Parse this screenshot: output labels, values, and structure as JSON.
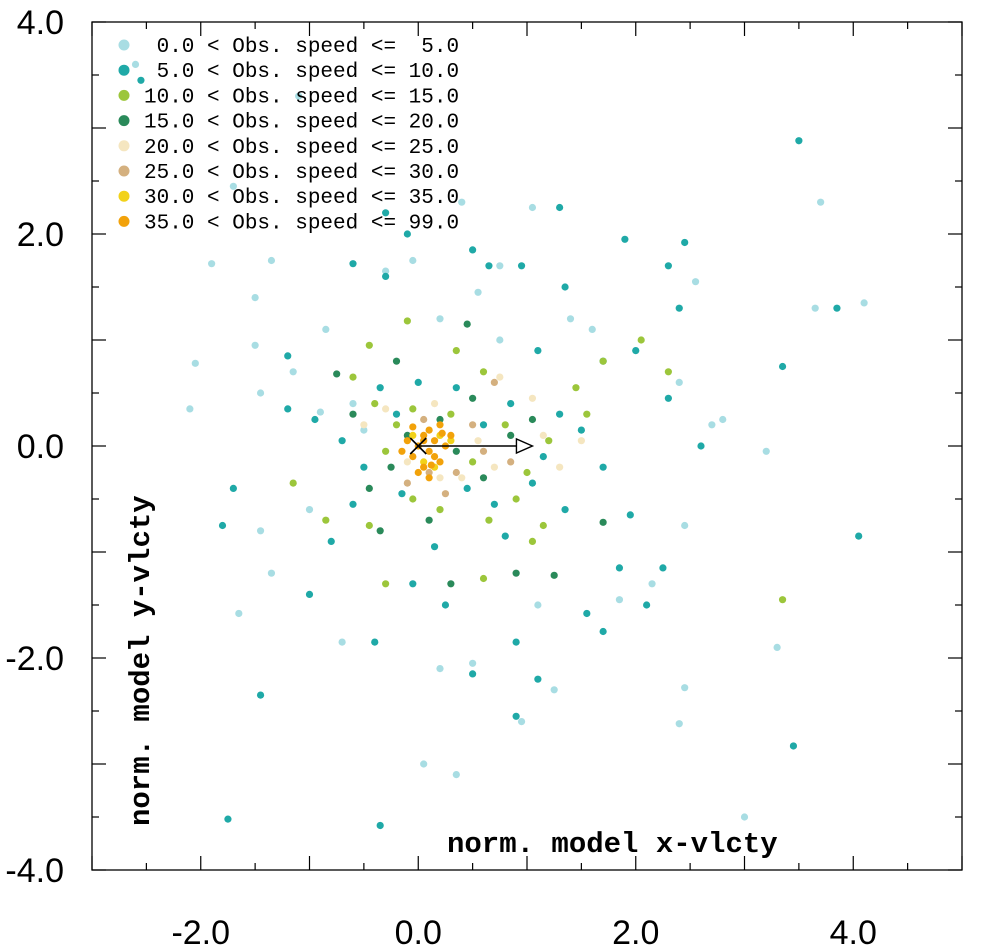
{
  "chart_data": {
    "type": "scatter",
    "xlabel": "norm. model x-vlcty",
    "ylabel": "norm. model y-vlcty",
    "xlim": [
      -3.0,
      5.0
    ],
    "ylim": [
      -4.0,
      4.0
    ],
    "x_ticks": [
      "-2.0",
      "0.0",
      "2.0",
      "4.0"
    ],
    "y_ticks": [
      "4.0",
      "2.0",
      "0.0",
      "-2.0",
      "-4.0"
    ],
    "legend_position": "top-left",
    "series": [
      {
        "name": "0.0 < Obs. speed <=  5.0",
        "color": "#a8dde3",
        "points": [
          [
            -2.6,
            3.6
          ],
          [
            -1.1,
            3.3
          ],
          [
            -1.7,
            2.45
          ],
          [
            -1.9,
            1.72
          ],
          [
            -1.5,
            1.4
          ],
          [
            -1.35,
            1.75
          ],
          [
            -2.1,
            0.35
          ],
          [
            -2.05,
            0.78
          ],
          [
            -1.5,
            0.95
          ],
          [
            -1.45,
            0.5
          ],
          [
            -1.15,
            0.7
          ],
          [
            -0.85,
            1.1
          ],
          [
            -0.9,
            0.32
          ],
          [
            -0.3,
            1.65
          ],
          [
            -0.5,
            0.15
          ],
          [
            -1.0,
            -0.6
          ],
          [
            -1.45,
            -0.8
          ],
          [
            -1.35,
            -1.2
          ],
          [
            -1.65,
            -1.58
          ],
          [
            -0.7,
            -1.85
          ],
          [
            0.2,
            -2.1
          ],
          [
            0.5,
            -2.05
          ],
          [
            0.95,
            -2.6
          ],
          [
            1.25,
            -2.3
          ],
          [
            1.1,
            -1.5
          ],
          [
            1.85,
            -1.45
          ],
          [
            2.15,
            -1.3
          ],
          [
            2.45,
            -0.75
          ],
          [
            2.7,
            0.2
          ],
          [
            2.8,
            0.25
          ],
          [
            2.4,
            0.6
          ],
          [
            2.55,
            1.55
          ],
          [
            3.7,
            2.3
          ],
          [
            3.65,
            1.3
          ],
          [
            4.1,
            1.35
          ],
          [
            3.2,
            -0.05
          ],
          [
            3.3,
            -1.9
          ],
          [
            2.45,
            -2.28
          ],
          [
            2.4,
            -2.62
          ],
          [
            3.0,
            -3.5
          ],
          [
            0.05,
            -3.0
          ],
          [
            0.35,
            -3.1
          ],
          [
            1.05,
            2.25
          ],
          [
            0.4,
            2.3
          ],
          [
            0.75,
            1.7
          ],
          [
            0.55,
            1.45
          ],
          [
            1.4,
            1.2
          ],
          [
            1.6,
            1.1
          ],
          [
            -0.6,
            0.4
          ],
          [
            0.2,
            1.2
          ],
          [
            -0.05,
            1.75
          ],
          [
            0.75,
            1.0
          ]
        ]
      },
      {
        "name": "5.0 < Obs. speed <= 10.0",
        "color": "#1fa9a7",
        "points": [
          [
            -2.55,
            3.45
          ],
          [
            3.5,
            2.88
          ],
          [
            -0.3,
            2.2
          ],
          [
            -0.1,
            2.0
          ],
          [
            1.3,
            2.25
          ],
          [
            1.9,
            1.95
          ],
          [
            2.45,
            1.92
          ],
          [
            2.3,
            1.7
          ],
          [
            0.5,
            1.85
          ],
          [
            0.65,
            1.7
          ],
          [
            -0.6,
            1.72
          ],
          [
            -0.3,
            1.6
          ],
          [
            1.35,
            1.5
          ],
          [
            0.95,
            1.7
          ],
          [
            1.1,
            0.9
          ],
          [
            1.7,
            0.8
          ],
          [
            2.0,
            0.9
          ],
          [
            2.4,
            1.3
          ],
          [
            3.35,
            0.75
          ],
          [
            3.85,
            1.3
          ],
          [
            -1.2,
            0.85
          ],
          [
            -1.2,
            0.35
          ],
          [
            -0.95,
            0.25
          ],
          [
            -1.8,
            -0.75
          ],
          [
            -1.7,
            -0.4
          ],
          [
            -1.0,
            -1.4
          ],
          [
            -1.45,
            -2.35
          ],
          [
            -1.75,
            -3.52
          ],
          [
            -0.35,
            -3.58
          ],
          [
            -0.4,
            -1.85
          ],
          [
            0.25,
            -1.5
          ],
          [
            0.5,
            -2.15
          ],
          [
            0.9,
            -1.85
          ],
          [
            1.1,
            -2.2
          ],
          [
            0.9,
            -2.55
          ],
          [
            1.55,
            -1.58
          ],
          [
            1.7,
            -1.75
          ],
          [
            1.85,
            -1.15
          ],
          [
            2.1,
            -1.5
          ],
          [
            2.25,
            -1.15
          ],
          [
            1.95,
            -0.65
          ],
          [
            2.6,
            0.0
          ],
          [
            2.3,
            0.45
          ],
          [
            3.45,
            -2.83
          ],
          [
            4.05,
            -0.85
          ],
          [
            -0.8,
            -0.9
          ],
          [
            -0.6,
            -0.55
          ],
          [
            0.8,
            -0.85
          ],
          [
            1.35,
            -0.6
          ],
          [
            -0.05,
            -1.3
          ],
          [
            0.15,
            -0.95
          ],
          [
            0.7,
            -0.55
          ],
          [
            -0.35,
            0.55
          ],
          [
            -0.2,
            0.3
          ],
          [
            0.35,
            0.55
          ],
          [
            0.85,
            0.4
          ],
          [
            1.3,
            0.3
          ],
          [
            1.5,
            0.15
          ],
          [
            1.7,
            -0.2
          ],
          [
            -0.5,
            -0.2
          ],
          [
            -0.15,
            -0.45
          ],
          [
            1.05,
            -0.35
          ],
          [
            0.45,
            -0.4
          ],
          [
            0.6,
            0.2
          ],
          [
            -0.7,
            0.05
          ],
          [
            0.0,
            0.6
          ],
          [
            1.15,
            -0.1
          ]
        ]
      },
      {
        "name": "10.0 < Obs. speed <= 15.0",
        "color": "#9cc63b",
        "points": [
          [
            2.05,
            1.0
          ],
          [
            2.3,
            0.7
          ],
          [
            1.7,
            0.8
          ],
          [
            1.45,
            0.55
          ],
          [
            1.55,
            0.3
          ],
          [
            -0.1,
            1.18
          ],
          [
            -0.45,
            0.95
          ],
          [
            -0.6,
            0.65
          ],
          [
            -0.85,
            -0.7
          ],
          [
            -0.45,
            -0.75
          ],
          [
            1.15,
            -0.75
          ],
          [
            1.05,
            -0.9
          ],
          [
            3.35,
            -1.45
          ],
          [
            -0.3,
            -1.3
          ],
          [
            0.6,
            -1.25
          ],
          [
            -1.15,
            -0.35
          ],
          [
            0.3,
            0.3
          ],
          [
            0.5,
            -0.15
          ],
          [
            -0.2,
            0.2
          ],
          [
            -0.05,
            -0.5
          ],
          [
            0.8,
            0.2
          ],
          [
            1.0,
            -0.25
          ],
          [
            0.2,
            -0.6
          ],
          [
            -0.4,
            0.4
          ],
          [
            0.9,
            -0.5
          ],
          [
            0.35,
            0.9
          ],
          [
            0.6,
            0.7
          ],
          [
            -0.3,
            -0.05
          ],
          [
            1.2,
            0.05
          ],
          [
            -0.05,
            0.35
          ],
          [
            0.65,
            -0.7
          ]
        ]
      },
      {
        "name": "15.0 < Obs. speed <= 20.0",
        "color": "#2a8a5a",
        "points": [
          [
            0.45,
            1.15
          ],
          [
            -0.2,
            0.8
          ],
          [
            -0.75,
            0.68
          ],
          [
            -0.6,
            0.3
          ],
          [
            -0.35,
            -0.8
          ],
          [
            0.3,
            -1.3
          ],
          [
            0.9,
            -1.2
          ],
          [
            1.25,
            -1.22
          ],
          [
            1.7,
            -0.72
          ],
          [
            0.6,
            -0.3
          ],
          [
            0.2,
            0.25
          ],
          [
            -0.1,
            0.1
          ],
          [
            0.35,
            -0.05
          ],
          [
            -0.25,
            -0.2
          ],
          [
            0.85,
            0.1
          ],
          [
            0.5,
            0.45
          ],
          [
            -0.45,
            -0.4
          ],
          [
            0.1,
            -0.7
          ],
          [
            1.05,
            0.25
          ]
        ]
      },
      {
        "name": "20.0 < Obs. speed <= 25.0",
        "color": "#f5e6c0",
        "points": [
          [
            1.05,
            0.45
          ],
          [
            0.75,
            0.65
          ],
          [
            -0.3,
            0.35
          ],
          [
            0.2,
            -0.3
          ],
          [
            0.55,
            0.05
          ],
          [
            0.4,
            -0.3
          ],
          [
            -0.1,
            -0.15
          ],
          [
            0.7,
            -0.2
          ],
          [
            0.15,
            0.4
          ],
          [
            1.3,
            -0.2
          ],
          [
            -0.5,
            0.2
          ],
          [
            0.95,
            0.0
          ],
          [
            1.15,
            0.1
          ],
          [
            1.5,
            0.05
          ]
        ]
      },
      {
        "name": "25.0 < Obs. speed <= 30.0",
        "color": "#d4b07f",
        "points": [
          [
            0.7,
            0.6
          ],
          [
            0.35,
            -0.25
          ],
          [
            0.6,
            -0.05
          ],
          [
            0.05,
            0.25
          ],
          [
            0.5,
            0.2
          ],
          [
            -0.1,
            -0.35
          ],
          [
            0.25,
            -0.45
          ],
          [
            0.85,
            -0.15
          ],
          [
            0.1,
            -0.25
          ]
        ]
      },
      {
        "name": "30.0 < Obs. speed <= 35.0",
        "color": "#f2d21a",
        "points": [
          [
            0.2,
            0.1
          ],
          [
            0.05,
            -0.15
          ],
          [
            0.3,
            0.05
          ],
          [
            -0.05,
            0.1
          ],
          [
            0.15,
            -0.2
          ]
        ]
      },
      {
        "name": "35.0 < Obs. speed <= 99.0",
        "color": "#f2a20a",
        "points": [
          [
            0.0,
            0.0
          ],
          [
            0.05,
            0.1
          ],
          [
            0.1,
            -0.05
          ],
          [
            -0.05,
            -0.1
          ],
          [
            0.15,
            0.05
          ],
          [
            0.2,
            -0.15
          ],
          [
            0.1,
            0.15
          ],
          [
            -0.1,
            0.05
          ],
          [
            0.05,
            -0.2
          ],
          [
            0.25,
            0.0
          ],
          [
            0.0,
            -0.25
          ],
          [
            0.15,
            -0.1
          ],
          [
            -0.05,
            0.18
          ],
          [
            0.3,
            0.1
          ],
          [
            0.1,
            -0.3
          ],
          [
            0.2,
            0.2
          ],
          [
            -0.15,
            -0.05
          ],
          [
            0.05,
            0.05
          ],
          [
            0.12,
            -0.18
          ],
          [
            0.22,
            0.12
          ]
        ]
      }
    ],
    "marker_x": [
      0.0,
      0.0
    ],
    "arrow": {
      "from": [
        0.0,
        0.0
      ],
      "to": [
        1.05,
        0.0
      ]
    }
  }
}
